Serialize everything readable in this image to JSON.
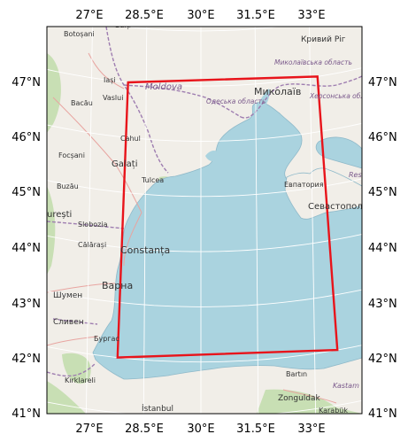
{
  "map": {
    "projection_note": "",
    "bbox_lon_range": [
      26.0,
      34.0
    ],
    "bbox_lat_range": [
      41.0,
      48.0
    ],
    "colors": {
      "sea": "#aad3df",
      "land": "#f1eee8",
      "forest": "#c8dfb4",
      "graticule": "#ffffff",
      "region_outline": "#e8141b",
      "border": "#9e7db0"
    },
    "top_lon_labels": [
      "27°E",
      "28.5°E",
      "30°E",
      "31.5°E",
      "33°E"
    ],
    "bottom_lon_labels": [
      "27°E",
      "28.5°E",
      "30°E",
      "31.5°E",
      "33°E"
    ],
    "left_lat_labels": [
      "47°N",
      "46°N",
      "45°N",
      "44°N",
      "43°N",
      "42°N",
      "41°N"
    ],
    "right_lat_labels": [
      "47°N",
      "46°N",
      "45°N",
      "44°N",
      "43°N",
      "42°N",
      "41°N"
    ],
    "region_box": {
      "corners_lonlat": [
        [
          28.0,
          47.0
        ],
        [
          33.2,
          47.0
        ],
        [
          33.6,
          42.0
        ],
        [
          27.8,
          42.0
        ]
      ]
    },
    "places": [
      {
        "name": "Botoșani"
      },
      {
        "name": "Bălți"
      },
      {
        "name": "Кривий Ріг"
      },
      {
        "name": "Миколаївська область"
      },
      {
        "name": "Iași"
      },
      {
        "name": "Moldova"
      },
      {
        "name": "Миколаїв"
      },
      {
        "name": "Vaslui"
      },
      {
        "name": "Одеська область"
      },
      {
        "name": "Херсонська область"
      },
      {
        "name": "Bacău"
      },
      {
        "name": "Cahul"
      },
      {
        "name": "Focșani"
      },
      {
        "name": "Galați"
      },
      {
        "name": "Tulcea"
      },
      {
        "name": "Buzău"
      },
      {
        "name": "Евпатория"
      },
      {
        "name": "Севастопол"
      },
      {
        "name": "urești"
      },
      {
        "name": "Slobozia"
      },
      {
        "name": "Călărași"
      },
      {
        "name": "Constanța"
      },
      {
        "name": "Шумен"
      },
      {
        "name": "Варна"
      },
      {
        "name": "Сливен"
      },
      {
        "name": "Бургас"
      },
      {
        "name": "Kırklareli"
      },
      {
        "name": "İstanbul"
      },
      {
        "name": "Bartın"
      },
      {
        "name": "Zonguldak"
      },
      {
        "name": "Karabük"
      },
      {
        "name": "Kastam"
      },
      {
        "name": "Res"
      }
    ]
  }
}
